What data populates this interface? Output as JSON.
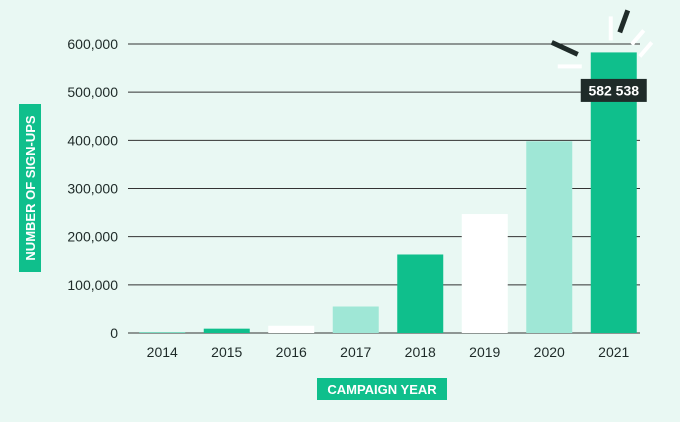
{
  "chart_data": {
    "type": "bar",
    "title": "",
    "xlabel": "CAMPAIGN YEAR",
    "ylabel": "NUMBER OF SIGN-UPS",
    "categories": [
      "2014",
      "2015",
      "2016",
      "2017",
      "2018",
      "2019",
      "2020",
      "2021"
    ],
    "values": [
      1000,
      9000,
      15000,
      55000,
      163000,
      247000,
      398000,
      582538
    ],
    "bar_colors": [
      "#0fbf8c",
      "#0fbf8c",
      "#ffffff",
      "#9fe7d6",
      "#0fbf8c",
      "#ffffff",
      "#9fe7d6",
      "#0fbf8c"
    ],
    "ylim": [
      0,
      600000
    ],
    "yticks": [
      0,
      100000,
      200000,
      300000,
      400000,
      500000,
      600000
    ],
    "ytick_labels": [
      "0",
      "100,000",
      "200,000",
      "300,000",
      "400,000",
      "500,000",
      "600,000"
    ],
    "grid": true,
    "legend": "none",
    "annotations": [
      {
        "category": "2021",
        "text": "582 538"
      }
    ]
  },
  "colors": {
    "background": "#e9f8f3",
    "accent": "#0fbf8c",
    "gridline": "#333333",
    "label_box": "#1f2b29"
  }
}
